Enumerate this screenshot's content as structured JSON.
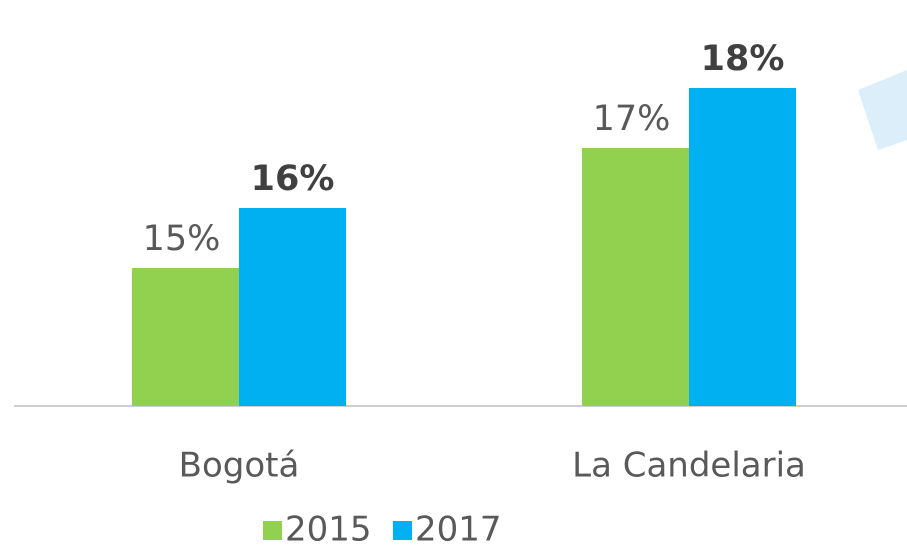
{
  "chart_data": {
    "type": "bar",
    "categories": [
      "Bogotá",
      "La Candelaria"
    ],
    "series": [
      {
        "name": "2015",
        "color": "#92d050",
        "values": [
          15,
          17
        ],
        "value_labels": [
          "15%",
          "17%"
        ],
        "bold": false
      },
      {
        "name": "2017",
        "color": "#00b0f0",
        "values": [
          16,
          18
        ],
        "value_labels": [
          "16%",
          "18%"
        ],
        "bold": true
      }
    ],
    "ylim": [
      12.7,
      19.4
    ],
    "legend": "bottom"
  }
}
